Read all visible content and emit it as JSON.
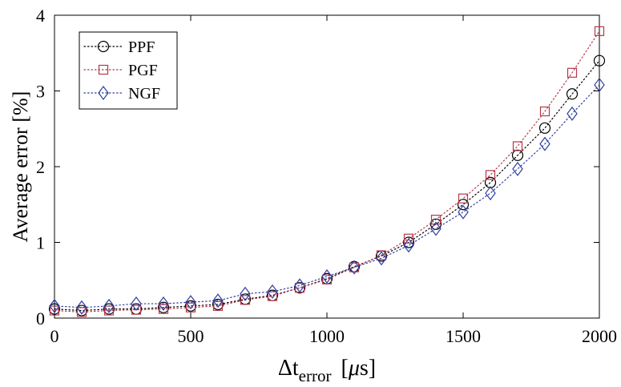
{
  "chart_data": {
    "type": "line",
    "title": "",
    "xlabel": {
      "main": "Δt",
      "sub": "error",
      "unit_open": "[",
      "unit_mu": "μ",
      "unit_rest": "s]"
    },
    "ylabel": "Average error [%]",
    "xlim": [
      0,
      2000
    ],
    "ylim": [
      0,
      4
    ],
    "xticks": [
      0,
      500,
      1000,
      1500,
      2000
    ],
    "yticks": [
      0,
      1,
      2,
      3,
      4
    ],
    "xtick_labels": [
      "0",
      "500",
      "1000",
      "1500",
      "2000"
    ],
    "ytick_labels": [
      "0",
      "1",
      "2",
      "3",
      "4"
    ],
    "grid": false,
    "legend_position": "top-left",
    "x": [
      0,
      100,
      200,
      300,
      400,
      500,
      600,
      700,
      800,
      900,
      1000,
      1100,
      1200,
      1300,
      1400,
      1500,
      1600,
      1700,
      1800,
      1900,
      2000
    ],
    "series": [
      {
        "name": "PPF",
        "color": "#000000",
        "marker": "circle",
        "values": [
          0.12,
          0.1,
          0.12,
          0.12,
          0.14,
          0.16,
          0.18,
          0.25,
          0.3,
          0.4,
          0.52,
          0.68,
          0.82,
          1.0,
          1.24,
          1.5,
          1.79,
          2.15,
          2.51,
          2.96,
          3.4
        ]
      },
      {
        "name": "PGF",
        "color": "#b5384a",
        "marker": "square",
        "values": [
          0.1,
          0.08,
          0.1,
          0.11,
          0.12,
          0.14,
          0.16,
          0.24,
          0.29,
          0.4,
          0.51,
          0.67,
          0.83,
          1.05,
          1.3,
          1.58,
          1.89,
          2.27,
          2.73,
          3.24,
          3.79
        ]
      },
      {
        "name": "NGF",
        "color": "#2f3e9e",
        "marker": "diamond",
        "values": [
          0.16,
          0.14,
          0.16,
          0.19,
          0.19,
          0.21,
          0.23,
          0.32,
          0.35,
          0.43,
          0.55,
          0.67,
          0.79,
          0.96,
          1.18,
          1.4,
          1.65,
          1.97,
          2.3,
          2.7,
          3.08
        ]
      }
    ]
  }
}
